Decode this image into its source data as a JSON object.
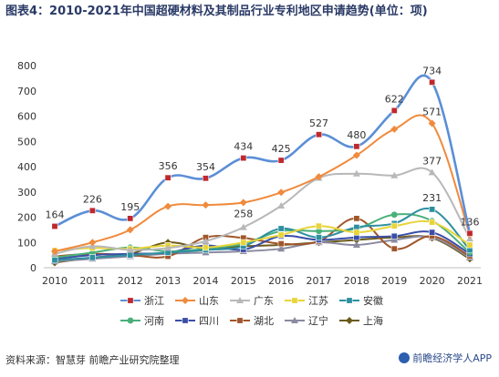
{
  "title": "图表4：2010-2021年中国超硬材料及其制品行业专利地区申请趋势(单位：项)",
  "source": "资料来源：智慧芽 前瞻产业研究院整理",
  "brand": "前瞻经济学人APP",
  "chart_data": {
    "type": "line",
    "categories": [
      "2010",
      "2011",
      "2012",
      "2013",
      "2014",
      "2015",
      "2016",
      "2017",
      "2018",
      "2019",
      "2020",
      "2021"
    ],
    "ylim": [
      0,
      800
    ],
    "yticks": [
      0,
      100,
      200,
      300,
      400,
      500,
      600,
      700,
      800
    ],
    "grid": false,
    "legend_position": "bottom",
    "series": [
      {
        "name": "浙江",
        "color": "#5b8fd6",
        "marker": "square",
        "marker_color": "#c0282d",
        "values": [
          164,
          226,
          195,
          356,
          354,
          434,
          425,
          527,
          480,
          622,
          734,
          136
        ],
        "labels": [
          "164",
          "226",
          "195",
          "356",
          "354",
          "434",
          "425",
          "527",
          "480",
          "622",
          "734",
          "136"
        ]
      },
      {
        "name": "山东",
        "color": "#f08a3c",
        "marker": "diamond",
        "values": [
          65,
          100,
          150,
          243,
          248,
          258,
          298,
          360,
          445,
          548,
          571,
          130
        ],
        "labels": [
          "",
          "",
          "",
          "",
          "",
          "258",
          "",
          "",
          "",
          "",
          "571",
          ""
        ]
      },
      {
        "name": "广东",
        "color": "#b8b8b8",
        "marker": "triangle",
        "values": [
          55,
          85,
          70,
          78,
          105,
          160,
          245,
          355,
          372,
          365,
          377,
          115
        ],
        "labels": [
          "",
          "",
          "",
          "",
          "",
          "",
          "",
          "",
          "",
          "",
          "377",
          ""
        ]
      },
      {
        "name": "江苏",
        "color": "#e8d43a",
        "marker": "square",
        "values": [
          68,
          78,
          75,
          88,
          80,
          100,
          130,
          165,
          140,
          165,
          180,
          90
        ],
        "labels": []
      },
      {
        "name": "安徽",
        "color": "#2e8fa0",
        "marker": "square",
        "values": [
          30,
          40,
          50,
          60,
          70,
          85,
          155,
          120,
          160,
          175,
          231,
          70
        ],
        "labels": [
          "",
          "",
          "",
          "",
          "",
          "",
          "",
          "",
          "",
          "",
          "231",
          ""
        ]
      },
      {
        "name": "河南",
        "color": "#4ab07a",
        "marker": "circle",
        "values": [
          40,
          60,
          80,
          65,
          75,
          95,
          145,
          145,
          155,
          210,
          185,
          60
        ],
        "labels": []
      },
      {
        "name": "四川",
        "color": "#3a4ea8",
        "marker": "square",
        "values": [
          35,
          50,
          55,
          60,
          88,
          72,
          125,
          110,
          120,
          125,
          140,
          55
        ],
        "labels": []
      },
      {
        "name": "湖北",
        "color": "#a0562a",
        "marker": "square",
        "values": [
          45,
          55,
          50,
          45,
          120,
          118,
          95,
          105,
          195,
          75,
          125,
          45
        ],
        "labels": []
      },
      {
        "name": "辽宁",
        "color": "#8a8aa0",
        "marker": "triangle",
        "values": [
          25,
          35,
          45,
          55,
          60,
          65,
          75,
          100,
          90,
          110,
          120,
          40
        ],
        "labels": []
      },
      {
        "name": "上海",
        "color": "#6b5b1a",
        "marker": "diamond",
        "values": [
          20,
          40,
          55,
          100,
          75,
          85,
          90,
          100,
          110,
          120,
          118,
          35
        ],
        "labels": []
      }
    ]
  }
}
